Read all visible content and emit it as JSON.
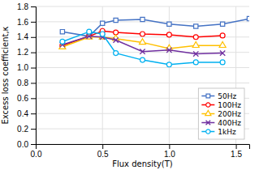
{
  "chart_data": {
    "type": "line",
    "xlabel": "Flux density(T)",
    "ylabel": "Excess loss coefficient,κ",
    "xlim": [
      0.0,
      1.6
    ],
    "ylim": [
      0.0,
      1.8
    ],
    "xticks": [
      {
        "value": 0,
        "label": "0.0"
      },
      0.5,
      {
        "value": 1,
        "label": "1.0"
      },
      1.5
    ],
    "yticks": [
      {
        "value": 0,
        "label": "0.0"
      },
      0.2,
      0.4,
      0.6,
      0.8,
      {
        "value": 1,
        "label": "1.0"
      },
      1.2,
      1.4,
      1.6,
      1.8
    ],
    "grid": true,
    "legend": "lower right",
    "series": [
      {
        "name": "50Hz",
        "color": "#4472C4",
        "marker": "square",
        "x": [
          0.2,
          0.4,
          0.5,
          0.6,
          0.8,
          1.0,
          1.2,
          1.4,
          1.6
        ],
        "values": [
          1.47,
          1.41,
          1.58,
          1.62,
          1.63,
          1.57,
          1.54,
          1.57,
          1.64
        ]
      },
      {
        "name": "100Hz",
        "color": "#FF0000",
        "marker": "circle",
        "x": [
          0.2,
          0.4,
          0.5,
          0.6,
          0.8,
          1.0,
          1.2,
          1.4
        ],
        "values": [
          1.29,
          1.41,
          1.48,
          1.46,
          1.44,
          1.43,
          1.4,
          1.42
        ]
      },
      {
        "name": "200Hz",
        "color": "#FFC000",
        "marker": "triangle",
        "x": [
          0.2,
          0.4,
          0.5,
          0.6,
          0.8,
          1.0,
          1.2,
          1.4
        ],
        "values": [
          1.27,
          1.4,
          1.4,
          1.38,
          1.33,
          1.25,
          1.29,
          1.29
        ]
      },
      {
        "name": "400Hz",
        "color": "#7030A0",
        "marker": "x",
        "x": [
          0.2,
          0.4,
          0.5,
          0.6,
          0.8,
          1.0,
          1.2,
          1.4
        ],
        "values": [
          1.3,
          1.41,
          1.4,
          1.36,
          1.21,
          1.23,
          1.18,
          1.19
        ]
      },
      {
        "name": "1kHz",
        "color": "#00B0F0",
        "marker": "circle",
        "x": [
          0.2,
          0.4,
          0.5,
          0.6,
          0.8,
          1.0,
          1.2,
          1.4
        ],
        "values": [
          1.34,
          1.47,
          1.44,
          1.19,
          1.1,
          1.04,
          1.07,
          1.07
        ]
      }
    ]
  }
}
